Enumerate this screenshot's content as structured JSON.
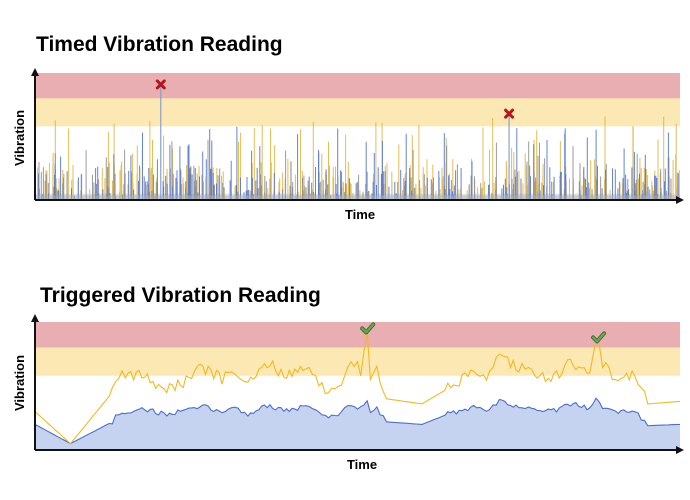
{
  "chart_data": [
    {
      "type": "line",
      "title": "Timed Vibration Reading",
      "xlabel": "Time",
      "ylabel": "Vibration",
      "bands": [
        {
          "name": "alarm",
          "color": "#e8aeb1",
          "from": 0.8,
          "to": 1.0
        },
        {
          "name": "warning",
          "color": "#fbe8b2",
          "from": 0.58,
          "to": 0.8
        }
      ],
      "ylim": [
        0,
        1
      ],
      "xlim": [
        0,
        1
      ],
      "grid": false,
      "legend": "none",
      "markers": [
        {
          "type": "cross-icon",
          "color": "#b4161b",
          "x": 0.195,
          "y": 0.91
        },
        {
          "type": "cross-icon",
          "color": "#b4161b",
          "x": 0.735,
          "y": 0.68
        }
      ],
      "series": [
        {
          "color": "#e0b23a",
          "style": "spikes",
          "seed": 7,
          "count": 260,
          "baseline": 0.05,
          "spike_max": 0.62
        },
        {
          "color": "#4b6fc8",
          "style": "spikes",
          "seed": 13,
          "count": 220,
          "baseline": 0.04,
          "spike_max": 0.55
        },
        {
          "color": "#8a8a8a",
          "style": "spikes",
          "seed": 29,
          "count": 160,
          "baseline": 0.03,
          "spike_max": 0.45
        }
      ],
      "peaks": [
        {
          "color": "#8aa0c8",
          "x": 0.195,
          "y": 0.9
        },
        {
          "color": "#8aa0c8",
          "x": 0.735,
          "y": 0.67
        }
      ]
    },
    {
      "type": "area",
      "title": "Triggered Vibration Reading",
      "xlabel": "Time",
      "ylabel": "Vibration",
      "bands": [
        {
          "name": "alarm",
          "color": "#e8aeb1",
          "from": 0.8,
          "to": 1.0
        },
        {
          "name": "warning",
          "color": "#fbe8b2",
          "from": 0.58,
          "to": 0.8
        }
      ],
      "ylim": [
        0,
        1
      ],
      "xlim": [
        0,
        1
      ],
      "grid": false,
      "legend": "none",
      "markers": [
        {
          "type": "check-icon",
          "color": "#6aa84f",
          "x": 0.515,
          "y": 0.95
        },
        {
          "type": "check-icon",
          "color": "#6aa84f",
          "x": 0.873,
          "y": 0.88
        }
      ],
      "series": [
        {
          "color": "#f2b91f",
          "x": [
            0.0,
            0.055,
            0.12,
            0.125,
            0.14,
            0.17,
            0.2,
            0.23,
            0.26,
            0.29,
            0.31,
            0.33,
            0.36,
            0.39,
            0.42,
            0.44,
            0.455,
            0.47,
            0.49,
            0.505,
            0.515,
            0.52,
            0.53,
            0.545,
            0.6,
            0.64,
            0.68,
            0.7,
            0.72,
            0.75,
            0.77,
            0.8,
            0.83,
            0.86,
            0.87,
            0.88,
            0.9,
            0.93,
            0.95,
            1.0
          ],
          "y": [
            0.3,
            0.05,
            0.45,
            0.55,
            0.6,
            0.58,
            0.48,
            0.52,
            0.65,
            0.55,
            0.62,
            0.5,
            0.68,
            0.58,
            0.66,
            0.52,
            0.45,
            0.5,
            0.7,
            0.62,
            0.94,
            0.55,
            0.62,
            0.4,
            0.36,
            0.48,
            0.6,
            0.55,
            0.72,
            0.65,
            0.6,
            0.55,
            0.68,
            0.62,
            0.88,
            0.68,
            0.55,
            0.58,
            0.36,
            0.38
          ]
        },
        {
          "color": "#4b6fc8",
          "area_color": "#c5d3f0",
          "x": [
            0.0,
            0.055,
            0.12,
            0.125,
            0.14,
            0.17,
            0.2,
            0.23,
            0.26,
            0.29,
            0.31,
            0.33,
            0.36,
            0.39,
            0.42,
            0.44,
            0.455,
            0.47,
            0.49,
            0.505,
            0.515,
            0.52,
            0.53,
            0.545,
            0.6,
            0.64,
            0.68,
            0.7,
            0.72,
            0.75,
            0.77,
            0.8,
            0.83,
            0.86,
            0.87,
            0.88,
            0.9,
            0.93,
            0.95,
            1.0
          ],
          "y": [
            0.2,
            0.05,
            0.22,
            0.28,
            0.3,
            0.32,
            0.28,
            0.3,
            0.34,
            0.3,
            0.33,
            0.28,
            0.35,
            0.31,
            0.34,
            0.29,
            0.26,
            0.28,
            0.36,
            0.32,
            0.4,
            0.3,
            0.33,
            0.22,
            0.2,
            0.28,
            0.33,
            0.3,
            0.38,
            0.34,
            0.32,
            0.3,
            0.36,
            0.33,
            0.42,
            0.34,
            0.3,
            0.31,
            0.19,
            0.2
          ]
        }
      ]
    }
  ]
}
